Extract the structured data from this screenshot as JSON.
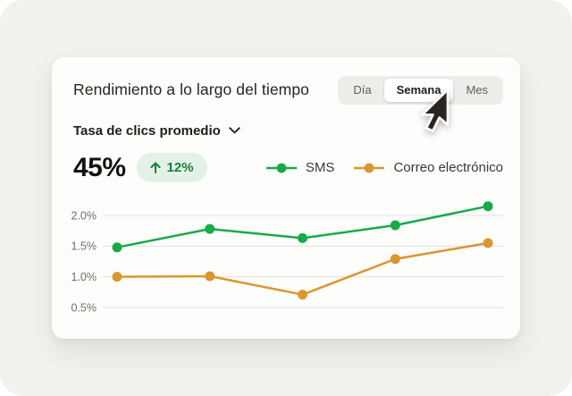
{
  "page": {
    "background_color": "#F2F1EC",
    "card_background_color": "#FDFDFB"
  },
  "card": {
    "title": "Rendimiento a lo largo del tiempo",
    "time_range_tabs": [
      {
        "label": "Día",
        "active": false
      },
      {
        "label": "Semana",
        "active": true
      },
      {
        "label": "Mes",
        "active": false
      }
    ],
    "metric_selector": {
      "value": "Tasa de clics promedio"
    },
    "stat": {
      "value": "45%",
      "delta": "12%",
      "delta_direction": "up"
    }
  },
  "chart_data": {
    "type": "line",
    "title": "",
    "xlabel": "",
    "ylabel": "",
    "x": [
      1,
      2,
      3,
      4,
      5
    ],
    "x_tick_labels": [],
    "series": [
      {
        "name": "SMS",
        "color": "#19A94B",
        "values": [
          1.48,
          1.78,
          1.63,
          1.84,
          2.15
        ]
      },
      {
        "name": "Correo electrónico",
        "color": "#D9972F",
        "values": [
          1.0,
          1.01,
          0.71,
          1.29,
          1.55
        ]
      }
    ],
    "y_ticks": [
      {
        "value": 2.0,
        "label": "2.0%"
      },
      {
        "value": 1.5,
        "label": "1.5%"
      },
      {
        "value": 1.0,
        "label": "1.0%"
      },
      {
        "value": 0.5,
        "label": "0.5%"
      }
    ],
    "ylim": [
      0.3,
      2.3
    ],
    "grid": true,
    "gridline_color": "#E2E0DC",
    "tick_label_color": "#6F6D67",
    "legend_position": "top-right"
  },
  "colors": {
    "sms_green": "#19A94B",
    "email_orange": "#D9972F",
    "badge_background": "#E3F2E6",
    "badge_text": "#15813C"
  },
  "cursor": {
    "shape": "arrow",
    "pointing_at": "Semana tab"
  }
}
